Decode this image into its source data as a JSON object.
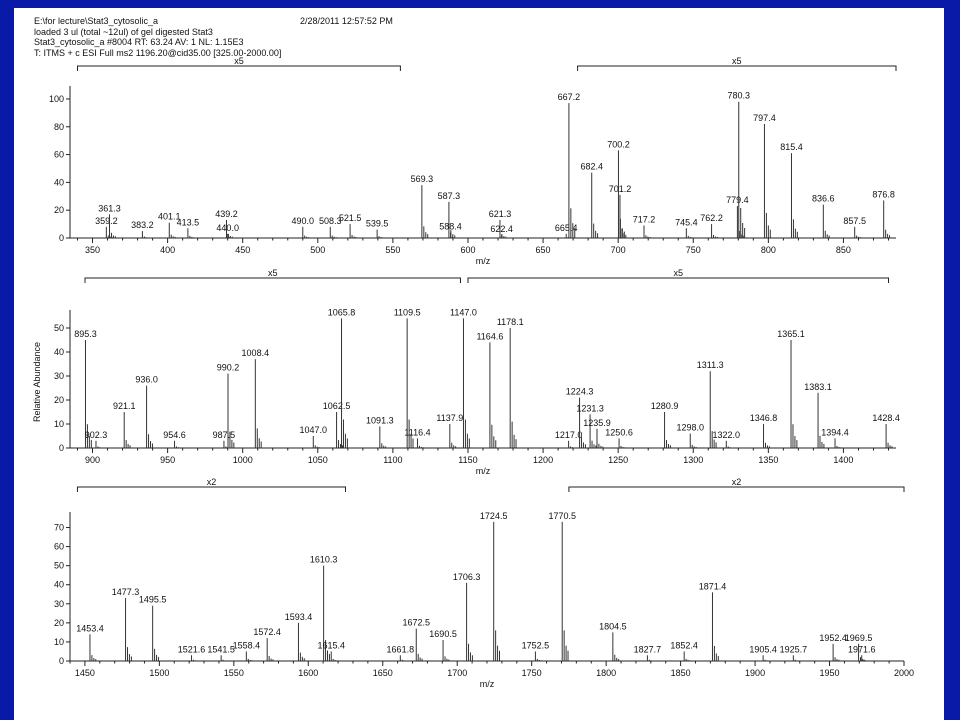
{
  "header": {
    "line1": "E:\\for lecture\\Stat3_cytosolic_a",
    "line2": "loaded 3 ul (total ~12ul) of gel digested Stat3",
    "line3": "Stat3_cytosolic_a #8004   RT: 63.24   AV: 1   NL: 1.15E3",
    "line4": "T: ITMS + c ESI Full ms2 1196.20@cid35.00 [325.00-2000.00]",
    "timestamp": "2/28/2011 12:57:52 PM"
  },
  "colors": {
    "background": "#0a1aa8",
    "paper": "#ffffff",
    "ink": "#222222"
  },
  "chart_data": [
    {
      "type": "bar",
      "xlabel": "m/z",
      "ylabel": "",
      "xlim": [
        335,
        885
      ],
      "ylim": [
        0,
        105
      ],
      "xticks": [
        350,
        400,
        450,
        500,
        550,
        600,
        650,
        700,
        750,
        800,
        850
      ],
      "yticks": [
        0,
        20,
        40,
        60,
        80,
        100
      ],
      "zoom": [
        {
          "label": "x5",
          "from": 340,
          "to": 555
        },
        {
          "label": "x5",
          "from": 673,
          "to": 885
        }
      ],
      "peaks": [
        {
          "x": 359.2,
          "y": 8,
          "label": "359.2"
        },
        {
          "x": 361.3,
          "y": 17,
          "label": "361.3"
        },
        {
          "x": 383.2,
          "y": 5,
          "label": "383.2"
        },
        {
          "x": 401.1,
          "y": 11,
          "label": "401.1"
        },
        {
          "x": 413.5,
          "y": 7,
          "label": "413.5"
        },
        {
          "x": 439.2,
          "y": 13,
          "label": "439.2"
        },
        {
          "x": 440.0,
          "y": 3,
          "label": "440.0"
        },
        {
          "x": 490.0,
          "y": 8,
          "label": "490.0"
        },
        {
          "x": 508.3,
          "y": 8,
          "label": "508.3"
        },
        {
          "x": 521.5,
          "y": 10,
          "label": "521.5"
        },
        {
          "x": 539.5,
          "y": 6,
          "label": "539.5"
        },
        {
          "x": 569.3,
          "y": 38,
          "label": "569.3"
        },
        {
          "x": 587.3,
          "y": 26,
          "label": "587.3"
        },
        {
          "x": 588.4,
          "y": 4,
          "label": "588.4"
        },
        {
          "x": 621.3,
          "y": 13,
          "label": "621.3"
        },
        {
          "x": 622.4,
          "y": 2,
          "label": "622.4"
        },
        {
          "x": 665.4,
          "y": 3,
          "label": "665.4"
        },
        {
          "x": 667.2,
          "y": 97,
          "label": "667.2"
        },
        {
          "x": 682.4,
          "y": 47,
          "label": "682.4"
        },
        {
          "x": 700.2,
          "y": 63,
          "label": "700.2"
        },
        {
          "x": 701.2,
          "y": 31,
          "label": "701.2"
        },
        {
          "x": 717.2,
          "y": 9,
          "label": "717.2"
        },
        {
          "x": 745.4,
          "y": 7,
          "label": "745.4"
        },
        {
          "x": 762.2,
          "y": 10,
          "label": "762.2"
        },
        {
          "x": 779.4,
          "y": 23,
          "label": "779.4"
        },
        {
          "x": 780.3,
          "y": 98,
          "label": "780.3"
        },
        {
          "x": 797.4,
          "y": 82,
          "label": "797.4"
        },
        {
          "x": 815.4,
          "y": 61,
          "label": "815.4"
        },
        {
          "x": 836.6,
          "y": 24,
          "label": "836.6"
        },
        {
          "x": 857.5,
          "y": 8,
          "label": "857.5"
        },
        {
          "x": 876.8,
          "y": 27,
          "label": "876.8"
        }
      ]
    },
    {
      "type": "bar",
      "xlabel": "m/z",
      "ylabel": "Relative Abundance",
      "xlim": [
        885,
        1435
      ],
      "ylim": [
        0,
        55
      ],
      "xticks": [
        900,
        950,
        1000,
        1050,
        1100,
        1150,
        1200,
        1250,
        1300,
        1350,
        1400
      ],
      "yticks": [
        0,
        10,
        20,
        30,
        40,
        50
      ],
      "zoom": [
        {
          "label": "x5",
          "from": 895,
          "to": 1145
        },
        {
          "label": "x5",
          "from": 1150,
          "to": 1430
        }
      ],
      "peaks": [
        {
          "x": 895.3,
          "y": 45,
          "label": "895.3"
        },
        {
          "x": 902.3,
          "y": 3,
          "label": "902.3"
        },
        {
          "x": 921.1,
          "y": 15,
          "label": "921.1"
        },
        {
          "x": 936.0,
          "y": 26,
          "label": "936.0"
        },
        {
          "x": 954.6,
          "y": 3,
          "label": "954.6"
        },
        {
          "x": 987.5,
          "y": 3,
          "label": "987.5"
        },
        {
          "x": 990.2,
          "y": 31,
          "label": "990.2"
        },
        {
          "x": 1008.4,
          "y": 37,
          "label": "1008.4"
        },
        {
          "x": 1047.0,
          "y": 5,
          "label": "1047.0"
        },
        {
          "x": 1062.5,
          "y": 15,
          "label": "1062.5"
        },
        {
          "x": 1065.8,
          "y": 54,
          "label": "1065.8"
        },
        {
          "x": 1091.3,
          "y": 9,
          "label": "1091.3"
        },
        {
          "x": 1109.5,
          "y": 54,
          "label": "1109.5"
        },
        {
          "x": 1116.4,
          "y": 4,
          "label": "1116.4"
        },
        {
          "x": 1137.9,
          "y": 10,
          "label": "1137.9"
        },
        {
          "x": 1147.0,
          "y": 54,
          "label": "1147.0"
        },
        {
          "x": 1164.6,
          "y": 44,
          "label": "1164.6"
        },
        {
          "x": 1178.1,
          "y": 50,
          "label": "1178.1"
        },
        {
          "x": 1217.0,
          "y": 3,
          "label": "1217.0"
        },
        {
          "x": 1224.3,
          "y": 21,
          "label": "1224.3"
        },
        {
          "x": 1231.3,
          "y": 14,
          "label": "1231.3"
        },
        {
          "x": 1235.9,
          "y": 8,
          "label": "1235.9"
        },
        {
          "x": 1250.6,
          "y": 4,
          "label": "1250.6"
        },
        {
          "x": 1280.9,
          "y": 15,
          "label": "1280.9"
        },
        {
          "x": 1298.0,
          "y": 6,
          "label": "1298.0"
        },
        {
          "x": 1311.3,
          "y": 32,
          "label": "1311.3"
        },
        {
          "x": 1322.0,
          "y": 3,
          "label": "1322.0"
        },
        {
          "x": 1346.8,
          "y": 10,
          "label": "1346.8"
        },
        {
          "x": 1365.1,
          "y": 45,
          "label": "1365.1"
        },
        {
          "x": 1383.1,
          "y": 23,
          "label": "1383.1"
        },
        {
          "x": 1394.4,
          "y": 4,
          "label": "1394.4"
        },
        {
          "x": 1428.4,
          "y": 10,
          "label": "1428.4"
        }
      ]
    },
    {
      "type": "bar",
      "xlabel": "m/z",
      "ylabel": "",
      "xlim": [
        1440,
        2000
      ],
      "ylim": [
        0,
        75
      ],
      "xticks": [
        1450,
        1500,
        1550,
        1600,
        1650,
        1700,
        1750,
        1800,
        1850,
        1900,
        1950,
        2000
      ],
      "yticks": [
        0,
        10,
        20,
        30,
        40,
        50,
        60,
        70
      ],
      "zoom": [
        {
          "label": "x2",
          "from": 1445,
          "to": 1625
        },
        {
          "label": "x2",
          "from": 1775,
          "to": 2000
        }
      ],
      "peaks": [
        {
          "x": 1453.4,
          "y": 14,
          "label": "1453.4"
        },
        {
          "x": 1477.3,
          "y": 33,
          "label": "1477.3"
        },
        {
          "x": 1495.5,
          "y": 29,
          "label": "1495.5"
        },
        {
          "x": 1521.6,
          "y": 3,
          "label": "1521.6"
        },
        {
          "x": 1541.5,
          "y": 3,
          "label": "1541.5"
        },
        {
          "x": 1558.4,
          "y": 5,
          "label": "1558.4"
        },
        {
          "x": 1572.4,
          "y": 12,
          "label": "1572.4"
        },
        {
          "x": 1593.4,
          "y": 20,
          "label": "1593.4"
        },
        {
          "x": 1610.3,
          "y": 50,
          "label": "1610.3"
        },
        {
          "x": 1615.4,
          "y": 5,
          "label": "1615.4"
        },
        {
          "x": 1661.8,
          "y": 3,
          "label": "1661.8"
        },
        {
          "x": 1672.5,
          "y": 17,
          "label": "1672.5"
        },
        {
          "x": 1690.5,
          "y": 11,
          "label": "1690.5"
        },
        {
          "x": 1706.3,
          "y": 41,
          "label": "1706.3"
        },
        {
          "x": 1724.5,
          "y": 73,
          "label": "1724.5"
        },
        {
          "x": 1752.5,
          "y": 5,
          "label": "1752.5"
        },
        {
          "x": 1770.5,
          "y": 73,
          "label": "1770.5"
        },
        {
          "x": 1804.5,
          "y": 15,
          "label": "1804.5"
        },
        {
          "x": 1827.7,
          "y": 3,
          "label": "1827.7"
        },
        {
          "x": 1852.4,
          "y": 5,
          "label": "1852.4"
        },
        {
          "x": 1871.4,
          "y": 36,
          "label": "1871.4"
        },
        {
          "x": 1905.4,
          "y": 3,
          "label": "1905.4"
        },
        {
          "x": 1925.7,
          "y": 3,
          "label": "1925.7"
        },
        {
          "x": 1952.4,
          "y": 9,
          "label": "1952.4"
        },
        {
          "x": 1969.5,
          "y": 9,
          "label": "1969.5"
        },
        {
          "x": 1971.6,
          "y": 3,
          "label": "1971.6"
        }
      ]
    }
  ]
}
